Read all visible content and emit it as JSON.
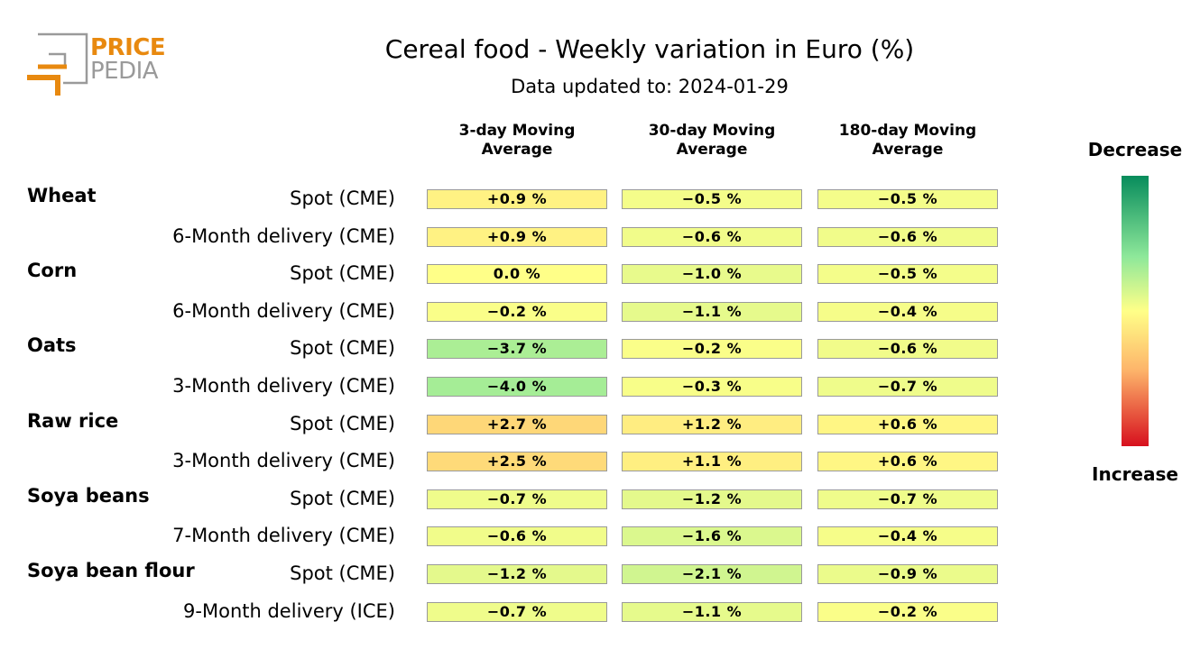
{
  "logo": {
    "line1": "PRICE",
    "line2": "PEDIA"
  },
  "title": "Cereal food - Weekly variation in Euro (%)",
  "subtitle": "Data updated to: 2024-01-29",
  "chart_data": {
    "type": "table",
    "title": "Cereal food - Weekly variation in Euro (%)",
    "subtitle": "Data updated to: 2024-01-29",
    "columns": [
      {
        "l1": "3-day Moving",
        "l2": "Average"
      },
      {
        "l1": "30-day Moving",
        "l2": "Average"
      },
      {
        "l1": "180-day Moving",
        "l2": "Average"
      }
    ],
    "groups": [
      {
        "name": "Wheat",
        "rows": [
          {
            "label": "Spot (CME)",
            "values": [
              0.9,
              -0.5,
              -0.5
            ],
            "display": [
              "+0.9 %",
              "−0.5 %",
              "−0.5 %"
            ]
          },
          {
            "label": "6-Month delivery (CME)",
            "values": [
              0.9,
              -0.6,
              -0.6
            ],
            "display": [
              "+0.9 %",
              "−0.6 %",
              "−0.6 %"
            ]
          }
        ]
      },
      {
        "name": "Corn",
        "rows": [
          {
            "label": "Spot (CME)",
            "values": [
              0.0,
              -1.0,
              -0.5
            ],
            "display": [
              "0.0 %",
              "−1.0 %",
              "−0.5 %"
            ]
          },
          {
            "label": "6-Month delivery (CME)",
            "values": [
              -0.2,
              -1.1,
              -0.4
            ],
            "display": [
              "−0.2 %",
              "−1.1 %",
              "−0.4 %"
            ]
          }
        ]
      },
      {
        "name": "Oats",
        "rows": [
          {
            "label": "Spot (CME)",
            "values": [
              -3.7,
              -0.2,
              -0.6
            ],
            "display": [
              "−3.7 %",
              "−0.2 %",
              "−0.6 %"
            ]
          },
          {
            "label": "3-Month delivery (CME)",
            "values": [
              -4.0,
              -0.3,
              -0.7
            ],
            "display": [
              "−4.0 %",
              "−0.3 %",
              "−0.7 %"
            ]
          }
        ]
      },
      {
        "name": "Raw rice",
        "rows": [
          {
            "label": "Spot (CME)",
            "values": [
              2.7,
              1.2,
              0.6
            ],
            "display": [
              "+2.7 %",
              "+1.2 %",
              "+0.6 %"
            ]
          },
          {
            "label": "3-Month delivery (CME)",
            "values": [
              2.5,
              1.1,
              0.6
            ],
            "display": [
              "+2.5 %",
              "+1.1 %",
              "+0.6 %"
            ]
          }
        ]
      },
      {
        "name": "Soya beans",
        "rows": [
          {
            "label": "Spot (CME)",
            "values": [
              -0.7,
              -1.2,
              -0.7
            ],
            "display": [
              "−0.7 %",
              "−1.2 %",
              "−0.7 %"
            ]
          },
          {
            "label": "7-Month delivery (CME)",
            "values": [
              -0.6,
              -1.6,
              -0.4
            ],
            "display": [
              "−0.6 %",
              "−1.6 %",
              "−0.4 %"
            ]
          }
        ]
      },
      {
        "name": "Soya bean flour",
        "rows": [
          {
            "label": "Spot (CME)",
            "values": [
              -1.2,
              -2.1,
              -0.9
            ],
            "display": [
              "−1.2 %",
              "−2.1 %",
              "−0.9 %"
            ]
          },
          {
            "label": "9-Month delivery (ICE)",
            "values": [
              -0.7,
              -1.1,
              -0.2
            ],
            "display": [
              "−0.7 %",
              "−1.1 %",
              "−0.2 %"
            ]
          }
        ]
      }
    ],
    "legend": {
      "top_label": "Decrease",
      "bottom_label": "Increase"
    },
    "colors": {
      "decrease": "#078c5c",
      "mid_green": "#8ee89a",
      "neutral": "#ffff88",
      "orange": "#fdb46a",
      "increase": "#d7101e"
    },
    "color_scale_range": [
      -10,
      10
    ]
  }
}
